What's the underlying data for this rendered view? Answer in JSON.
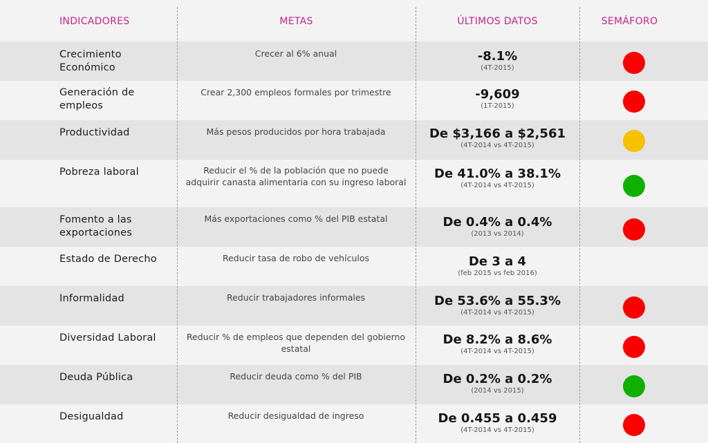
{
  "headers": {
    "indicadores": "INDICADORES",
    "metas": "METAS",
    "datos": "ÚLTIMOS DATOS",
    "semaforo": "SEMÁFORO"
  },
  "colors": {
    "rojo": "#fa0000",
    "amarillo": "#f6c100",
    "verde": "#10b000"
  },
  "rows": [
    {
      "indicador": "Crecimiento Económico",
      "meta": "Crecer al 6% anual",
      "dato": "-8.1%",
      "periodo": "(4T-2015)",
      "semaforo": "rojo"
    },
    {
      "indicador": "Generación de empleos",
      "meta": "Crear 2,300 empleos formales por trimestre",
      "dato": "-9,609",
      "periodo": "(1T-2015)",
      "semaforo": "rojo"
    },
    {
      "indicador": "Productividad",
      "meta": "Más pesos producidos por hora trabajada",
      "dato": "De $3,166 a $2,561",
      "periodo": "(4T-2014 vs 4T-2015)",
      "semaforo": "amarillo"
    },
    {
      "indicador": "Pobreza laboral",
      "meta": "Reducir el % de la población que no puede adquirir canasta alimentaria con su ingreso laboral",
      "dato": "De 41.0% a 38.1%",
      "periodo": "(4T-2014 vs 4T-2015)",
      "semaforo": "verde"
    },
    {
      "indicador": "Fomento a las exportaciones",
      "meta": "Más exportaciones como % del PIB estatal",
      "dato": "De 0.4% a 0.4%",
      "periodo": "(2013 vs 2014)",
      "semaforo": "rojo"
    },
    {
      "indicador": "Estado de Derecho",
      "meta": "Reducir tasa de robo de vehículos",
      "dato": "De 3 a 4",
      "periodo": "(feb 2015 vs feb 2016)",
      "semaforo": ""
    },
    {
      "indicador": "Informalidad",
      "meta": "Reducir trabajadores informales",
      "dato": "De 53.6% a 55.3%",
      "periodo": "(4T-2014 vs 4T-2015)",
      "semaforo": "rojo"
    },
    {
      "indicador": "Diversidad Laboral",
      "meta": "Reducir % de empleos que dependen del gobierno estatal",
      "dato": "De 8.2% a 8.6%",
      "periodo": "(4T-2014 vs 4T-2015)",
      "semaforo": "rojo"
    },
    {
      "indicador": "Deuda Pública",
      "meta": "Reducir deuda como % del PIB",
      "dato": "De 0.2% a 0.2%",
      "periodo": "(2014 vs 2015)",
      "semaforo": "verde"
    },
    {
      "indicador": "Desigualdad",
      "meta": "Reducir desigualdad de ingreso",
      "dato": "De 0.455 a 0.459",
      "periodo": "(4T-2014 vs 4T-2015)",
      "semaforo": "rojo"
    }
  ]
}
